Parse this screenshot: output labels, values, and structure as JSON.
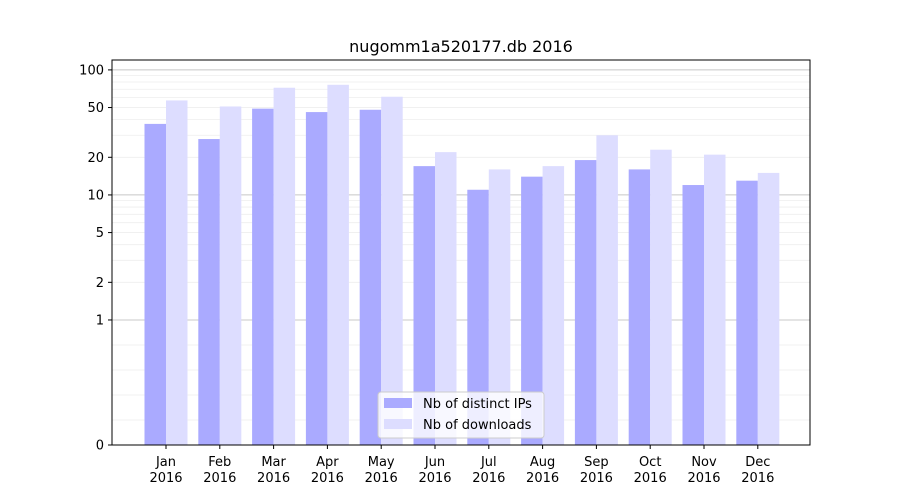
{
  "chart_data": {
    "type": "bar",
    "title": "nugomm1a520177.db 2016",
    "xlabel": "",
    "ylabel": "",
    "yscale": "symlog",
    "ylim": [
      0,
      120
    ],
    "yticks": [
      0,
      1,
      2,
      5,
      10,
      20,
      50,
      100
    ],
    "ytick_labels": [
      "0",
      "1",
      "2",
      "5",
      "10",
      "20",
      "50",
      "100"
    ],
    "categories": [
      [
        "Jan",
        "2016"
      ],
      [
        "Feb",
        "2016"
      ],
      [
        "Mar",
        "2016"
      ],
      [
        "Apr",
        "2016"
      ],
      [
        "May",
        "2016"
      ],
      [
        "Jun",
        "2016"
      ],
      [
        "Jul",
        "2016"
      ],
      [
        "Aug",
        "2016"
      ],
      [
        "Sep",
        "2016"
      ],
      [
        "Oct",
        "2016"
      ],
      [
        "Nov",
        "2016"
      ],
      [
        "Dec",
        "2016"
      ]
    ],
    "series": [
      {
        "name": "Nb of distinct IPs",
        "color": "#aaaaff",
        "values": [
          37,
          28,
          49,
          46,
          48,
          17,
          11,
          14,
          19,
          16,
          12,
          13
        ]
      },
      {
        "name": "Nb of downloads",
        "color": "#ddddff",
        "values": [
          57,
          51,
          72,
          76,
          61,
          22,
          16,
          17,
          30,
          23,
          21,
          15
        ]
      }
    ],
    "grid": true,
    "legend_position": "bottom-center"
  }
}
